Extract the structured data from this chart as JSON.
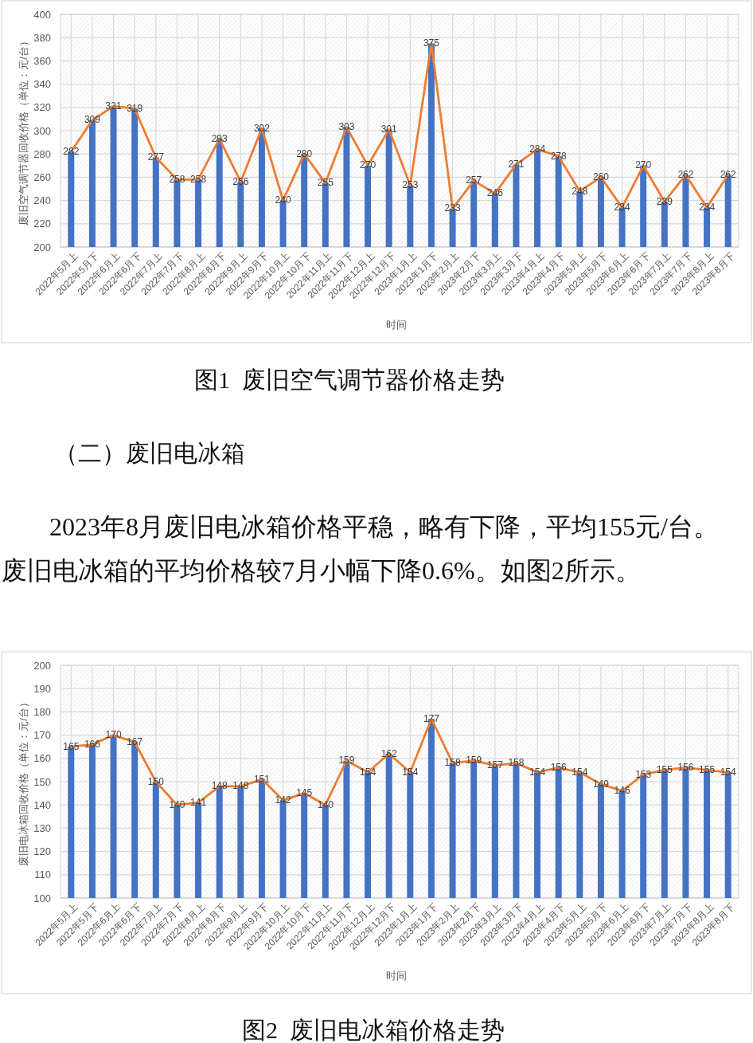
{
  "chart_data": [
    {
      "type": "bar",
      "categories": [
        "2022年5月上",
        "2022年5月下",
        "2022年6月上",
        "2022年6月下",
        "2022年7月上",
        "2022年7月下",
        "2022年8月上",
        "2022年8月下",
        "2022年9月上",
        "2022年9月下",
        "2022年10月上",
        "2022年10月下",
        "2022年11月上",
        "2022年11月下",
        "2022年12月上",
        "2022年12月下",
        "2023年1月上",
        "2023年1月下",
        "2023年2月上",
        "2023年2月下",
        "2023年3月上",
        "2023年3月下",
        "2023年4月上",
        "2023年4月下",
        "2023年5月上",
        "2023年5月下",
        "2023年6月上",
        "2023年6月下",
        "2023年7月上",
        "2023年7月下",
        "2023年8月上",
        "2023年8月下"
      ],
      "series": [
        {
          "color": "#4472c4",
          "values": [
            282,
            309,
            321,
            319,
            277,
            258,
            258,
            293,
            256,
            302,
            240,
            280,
            255,
            303,
            270,
            301,
            253,
            375,
            233,
            257,
            246,
            271,
            284,
            278,
            248,
            260,
            234,
            270,
            239,
            262,
            234,
            262
          ]
        },
        {
          "type": "line",
          "color": "#ed7d31",
          "values": [
            282,
            309,
            321,
            319,
            277,
            258,
            258,
            293,
            256,
            302,
            240,
            280,
            255,
            303,
            270,
            301,
            253,
            375,
            233,
            257,
            246,
            271,
            284,
            278,
            248,
            260,
            234,
            270,
            239,
            262,
            234,
            262
          ],
          "value_labels": [
            "282",
            "309",
            "321",
            "319",
            "277",
            "258",
            "258",
            "293",
            "256",
            "302",
            "240",
            "280",
            "255",
            "303",
            "270",
            "301",
            "253",
            "375",
            "233",
            "257",
            "246",
            "271",
            "284",
            "278",
            "248",
            "260",
            "234",
            "270",
            "239",
            "262",
            "234",
            "262"
          ]
        }
      ],
      "ylim": [
        200,
        400
      ],
      "yticks": [
        200,
        220,
        240,
        260,
        280,
        300,
        320,
        340,
        360,
        380,
        400
      ],
      "ylabel": "废旧空气调节器回收价格（单位：元/台）",
      "xlabel": "时间",
      "grid": true,
      "line_style": "solid",
      "annotations": [
        "图1  废旧空气调节器价格走势",
        "（二）废旧电冰箱",
        "2023年8月废旧电冰箱价格平稳，略有下降，平均155元/台。",
        "废旧电冰箱的平均价格较7月小幅下降0.6%。如图2所示。"
      ]
    },
    {
      "type": "bar",
      "categories": [
        "2022年5月上",
        "2022年5月下",
        "2022年6月上",
        "2022年6月下",
        "2022年7月上",
        "2022年7月下",
        "2022年8月上",
        "2022年8月下",
        "2022年9月上",
        "2022年9月下",
        "2022年10月上",
        "2022年10月下",
        "2022年11月上",
        "2022年11月下",
        "2022年12月上",
        "2022年12月下",
        "2023年1月上",
        "2023年1月下",
        "2023年2月上",
        "2023年2月下",
        "2023年3月上",
        "2023年3月下",
        "2023年4月上",
        "2023年4月下",
        "2023年5月上",
        "2023年5月下",
        "2023年6月上",
        "2023年6月下",
        "2023年7月上",
        "2023年7月下",
        "2023年8月上",
        "2023年8月下"
      ],
      "series": [
        {
          "color": "#4472c4",
          "values": [
            165,
            166,
            170,
            167,
            150,
            140,
            141,
            148,
            148,
            151,
            142,
            145,
            140,
            159,
            154,
            162,
            154,
            177,
            158,
            159,
            157,
            158,
            154,
            156,
            154,
            149,
            146,
            153,
            155,
            156,
            155,
            154
          ]
        },
        {
          "type": "line",
          "color": "#ed7d31",
          "values": [
            165,
            166,
            170,
            167,
            150,
            140,
            141,
            148,
            148,
            151,
            142,
            145,
            140,
            159,
            154,
            162,
            154,
            177,
            158,
            159,
            157,
            158,
            154,
            156,
            154,
            149,
            146,
            153,
            155,
            156,
            155,
            154
          ],
          "value_labels": [
            "165",
            "166",
            "170",
            "167",
            "150",
            "140",
            "141",
            "148",
            "148",
            "151",
            "142",
            "145",
            "140",
            "159",
            "154",
            "162",
            "154",
            "177",
            "158",
            "159",
            "157",
            "158",
            "154",
            "156",
            "154",
            "149",
            "146",
            "153",
            "155",
            "156",
            "155",
            "154"
          ]
        }
      ],
      "ylim": [
        100,
        200
      ],
      "yticks": [
        100,
        110,
        120,
        130,
        140,
        150,
        160,
        170,
        180,
        190,
        200
      ],
      "ylabel": "废旧电冰箱回收价格（单位：元/台）",
      "xlabel": "时间",
      "grid": true,
      "line_style": "solid",
      "annotations": [
        "图2  废旧电冰箱价格走势"
      ]
    }
  ]
}
